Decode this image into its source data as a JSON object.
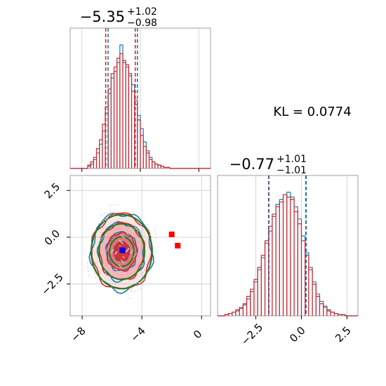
{
  "kl_label": "KL = 0.0774",
  "colors": {
    "series_a": "#1f77b4",
    "series_b": "#d62728",
    "contour_green": "#2a7a22",
    "truth_marker": "#0000ff",
    "point_marker": "#ff0000",
    "grid": "#cccccc"
  },
  "chart_data": [
    {
      "type": "histogram",
      "panel": "top-left marginal",
      "title_value": "−5.35",
      "title_plus": "+1.02",
      "title_minus": "−0.98",
      "xlim": [
        -8.8,
        0.8
      ],
      "grid": true,
      "quantile_lines": [
        -6.37,
        -6.21,
        -4.35,
        -4.2
      ],
      "series": [
        {
          "color": "#1f77b4",
          "bins": [
            -7.6,
            -7.4,
            -7.2,
            -7.0,
            -6.8,
            -6.6,
            -6.4,
            -6.2,
            -6.0,
            -5.8,
            -5.6,
            -5.4,
            -5.2,
            -5.0,
            -4.8,
            -4.6,
            -4.4,
            -4.2,
            -4.0,
            -3.8,
            -3.6,
            -3.4,
            -3.2,
            -3.0,
            -2.8,
            -2.6,
            -2.4,
            -2.2
          ],
          "counts": [
            2,
            4,
            8,
            14,
            22,
            34,
            50,
            68,
            82,
            88,
            96,
            112,
            98,
            92,
            84,
            76,
            62,
            48,
            36,
            24,
            16,
            10,
            6,
            4,
            3,
            2,
            1,
            1
          ]
        },
        {
          "color": "#d62728",
          "bins": [
            -7.6,
            -7.4,
            -7.2,
            -7.0,
            -6.8,
            -6.6,
            -6.4,
            -6.2,
            -6.0,
            -5.8,
            -5.6,
            -5.4,
            -5.2,
            -5.0,
            -4.8,
            -4.6,
            -4.4,
            -4.2,
            -4.0,
            -3.8,
            -3.6,
            -3.4,
            -3.2,
            -3.0,
            -2.8,
            -2.6,
            -2.4,
            -2.2
          ],
          "counts": [
            3,
            6,
            10,
            18,
            26,
            40,
            56,
            72,
            86,
            92,
            100,
            104,
            96,
            94,
            86,
            70,
            58,
            44,
            30,
            20,
            14,
            8,
            6,
            4,
            3,
            2,
            1,
            1
          ]
        }
      ]
    },
    {
      "type": "histogram",
      "panel": "bottom-right marginal",
      "title_value": "−0.77",
      "title_plus": "+1.01",
      "title_minus": "−1.01",
      "xlim": [
        -4.6,
        3.1
      ],
      "xticks": [
        "−2.5",
        "0.0",
        "2.5"
      ],
      "grid": true,
      "quantile_lines": [
        -1.8,
        -1.78,
        0.24,
        0.26
      ],
      "series": [
        {
          "color": "#1f77b4",
          "bins": [
            -4.2,
            -4.0,
            -3.8,
            -3.6,
            -3.4,
            -3.2,
            -3.0,
            -2.8,
            -2.6,
            -2.4,
            -2.2,
            -2.0,
            -1.8,
            -1.6,
            -1.4,
            -1.2,
            -1.0,
            -0.8,
            -0.6,
            -0.4,
            -0.2,
            0.0,
            0.2,
            0.4,
            0.6,
            0.8,
            1.0,
            1.2,
            1.4,
            1.6,
            1.8,
            2.0,
            2.2
          ],
          "counts": [
            1,
            2,
            3,
            4,
            6,
            9,
            14,
            20,
            28,
            38,
            48,
            60,
            70,
            82,
            92,
            96,
            100,
            102,
            98,
            90,
            80,
            66,
            52,
            40,
            28,
            18,
            12,
            8,
            5,
            3,
            2,
            1,
            1
          ]
        },
        {
          "color": "#d62728",
          "bins": [
            -4.2,
            -4.0,
            -3.8,
            -3.6,
            -3.4,
            -3.2,
            -3.0,
            -2.8,
            -2.6,
            -2.4,
            -2.2,
            -2.0,
            -1.8,
            -1.6,
            -1.4,
            -1.2,
            -1.0,
            -0.8,
            -0.6,
            -0.4,
            -0.2,
            0.0,
            0.2,
            0.4,
            0.6,
            0.8,
            1.0,
            1.2,
            1.4,
            1.6,
            1.8,
            2.0,
            2.2
          ],
          "counts": [
            1,
            2,
            3,
            5,
            7,
            10,
            16,
            22,
            30,
            40,
            50,
            62,
            74,
            84,
            90,
            94,
            100,
            98,
            96,
            86,
            76,
            62,
            50,
            38,
            26,
            16,
            10,
            7,
            4,
            3,
            2,
            1,
            1
          ]
        }
      ]
    },
    {
      "type": "contour",
      "panel": "bottom-left joint",
      "xlim": [
        -8.8,
        0.6
      ],
      "ylim": [
        -4.2,
        3.3
      ],
      "xticks": [
        "−8",
        "−4",
        "0"
      ],
      "yticks": [
        "2.5",
        "0.0",
        "−2.5"
      ],
      "grid": true,
      "center": [
        -5.35,
        -0.77
      ],
      "contour_levels_sigma": [
        0.5,
        1.0,
        1.5,
        2.0
      ],
      "sigma": [
        1.0,
        1.01
      ],
      "truth_point": [
        -5.3,
        -0.7
      ],
      "extra_points": [
        [
          -2.0,
          0.15
        ],
        [
          -1.6,
          -0.45
        ]
      ]
    }
  ]
}
